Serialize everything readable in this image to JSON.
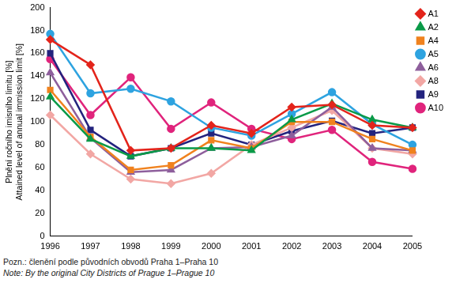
{
  "chart_data": {
    "type": "line",
    "ylabel": [
      "Plnění ročního imisního limitu [%]",
      "Attained level of annual immission limit [%]"
    ],
    "notes": [
      "Pozn.: členění podle původních obvodů Praha 1–Praha 10",
      "Note: By the original City Districts of Prague 1–Prague 10"
    ],
    "categories": [
      "1996",
      "1997",
      "1998",
      "1999",
      "2000",
      "2001",
      "2002",
      "2003",
      "2004",
      "2005"
    ],
    "ylim": [
      0,
      200
    ],
    "yticks": [
      0,
      20,
      40,
      60,
      80,
      100,
      120,
      140,
      160,
      180,
      200
    ],
    "grid": false,
    "legend": "upper right",
    "series": [
      {
        "name": "A1",
        "color": "#e3241b",
        "marker": "diamond",
        "values": [
          172,
          150,
          75,
          77,
          97,
          90,
          113,
          115,
          97,
          95
        ]
      },
      {
        "name": "A2",
        "color": "#0a9a48",
        "marker": "triangle",
        "values": [
          122,
          85,
          70,
          77,
          77,
          75,
          102,
          116,
          102,
          95
        ]
      },
      {
        "name": "A4",
        "color": "#f0821e",
        "marker": "square",
        "values": [
          128,
          87,
          58,
          62,
          84,
          77,
          100,
          100,
          85,
          75
        ]
      },
      {
        "name": "A5",
        "color": "#2ea3e0",
        "marker": "circle",
        "values": [
          177,
          125,
          129,
          118,
          95,
          88,
          107,
          126,
          98,
          80
        ]
      },
      {
        "name": "A6",
        "color": "#8e5f9c",
        "marker": "triangle",
        "values": [
          143,
          86,
          56,
          58,
          77,
          78,
          88,
          113,
          77,
          75
        ]
      },
      {
        "name": "A8",
        "color": "#f2a7a4",
        "marker": "diamond",
        "values": [
          106,
          72,
          50,
          46,
          55,
          80,
          95,
          110,
          77,
          72
        ]
      },
      {
        "name": "A9",
        "color": "#23237e",
        "marker": "square",
        "values": [
          160,
          93,
          70,
          77,
          90,
          80,
          92,
          101,
          90,
          95
        ]
      },
      {
        "name": "A10",
        "color": "#e0247c",
        "marker": "circle",
        "values": [
          155,
          106,
          139,
          94,
          117,
          94,
          85,
          93,
          65,
          59
        ]
      }
    ]
  }
}
